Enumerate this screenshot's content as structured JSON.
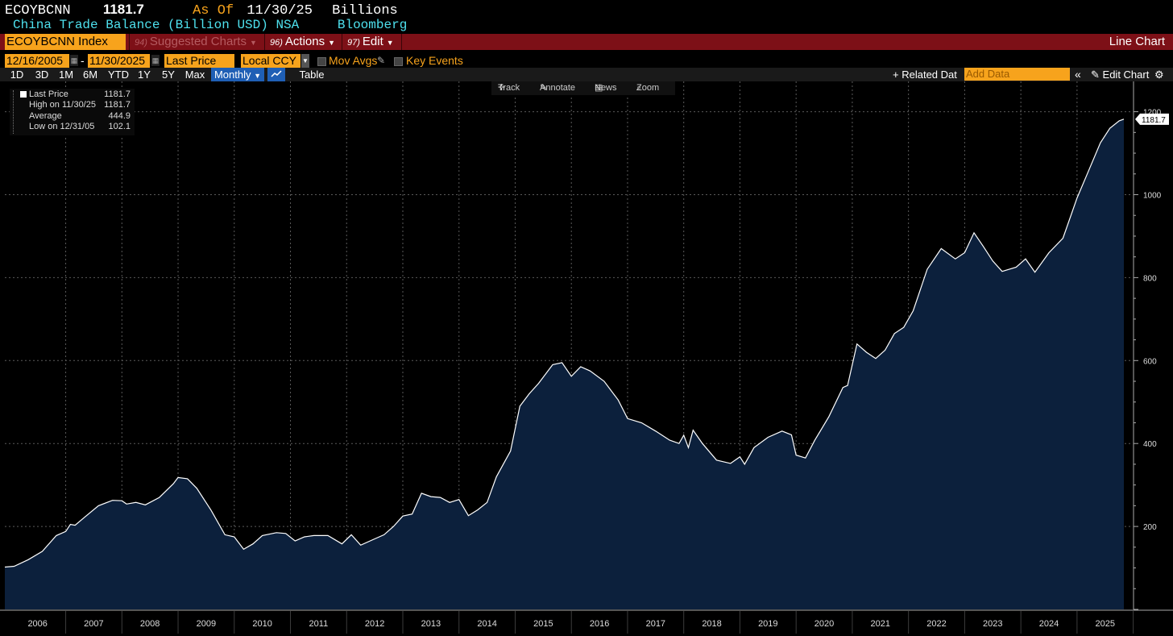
{
  "header": {
    "ticker": "ECOYBCNN",
    "last_value": "1181.7",
    "as_of_label": "As Of",
    "as_of_date": "11/30/25",
    "units": "Billions",
    "description": "China Trade Balance (Billion USD) NSA",
    "source": "Bloomberg"
  },
  "menu": {
    "index_label": "ECOYBCNN Index",
    "suggested": {
      "num": "94)",
      "label": "Suggested Charts"
    },
    "actions": {
      "num": "96)",
      "label": "Actions"
    },
    "edit": {
      "num": "97)",
      "label": "Edit"
    },
    "chart_title": "Line Chart"
  },
  "controls": {
    "start_date": "12/16/2005",
    "end_date": "11/30/2025",
    "dash": "-",
    "field": "Last Price",
    "currency": "Local CCY",
    "mov_avgs": "Mov Avgs",
    "key_events": "Key Events"
  },
  "periods": [
    "1D",
    "3D",
    "1M",
    "6M",
    "YTD",
    "1Y",
    "5Y",
    "Max"
  ],
  "frequency": "Monthly",
  "table_label": "Table",
  "related_data": "Related Dat",
  "add_data_placeholder": "Add Data",
  "edit_chart": "Edit Chart",
  "tools": {
    "track": "Track",
    "annotate": "Annotate",
    "news": "News",
    "zoom": "Zoom"
  },
  "legend": {
    "last_price_label": "Last Price",
    "last_price_value": "1181.7",
    "high_label": "High on 11/30/25",
    "high_value": "1181.7",
    "average_label": "Average",
    "average_value": "444.9",
    "low_label": "Low on 12/31/05",
    "low_value": "102.1"
  },
  "colors": {
    "accent": "#f7a31c",
    "menu_bar": "#7d1017",
    "fill": "#0c203c",
    "line": "#ffffff",
    "cyan": "#4ee1ee"
  },
  "chart_data": {
    "type": "area",
    "series": [
      {
        "name": "Last Price",
        "points": [
          [
            "2005-12",
            102
          ],
          [
            "2006-02",
            104
          ],
          [
            "2006-05",
            120
          ],
          [
            "2006-08",
            140
          ],
          [
            "2006-11",
            178
          ],
          [
            "2007-01",
            188
          ],
          [
            "2007-02",
            205
          ],
          [
            "2007-03",
            203
          ],
          [
            "2007-05",
            222
          ],
          [
            "2007-08",
            250
          ],
          [
            "2007-11",
            263
          ],
          [
            "2008-01",
            262
          ],
          [
            "2008-02",
            254
          ],
          [
            "2008-04",
            258
          ],
          [
            "2008-06",
            252
          ],
          [
            "2008-09",
            270
          ],
          [
            "2008-12",
            303
          ],
          [
            "2009-01",
            318
          ],
          [
            "2009-03",
            315
          ],
          [
            "2009-05",
            292
          ],
          [
            "2009-08",
            240
          ],
          [
            "2009-11",
            180
          ],
          [
            "2010-01",
            175
          ],
          [
            "2010-03",
            145
          ],
          [
            "2010-05",
            158
          ],
          [
            "2010-07",
            178
          ],
          [
            "2010-10",
            185
          ],
          [
            "2010-12",
            183
          ],
          [
            "2011-02",
            165
          ],
          [
            "2011-04",
            175
          ],
          [
            "2011-06",
            178
          ],
          [
            "2011-09",
            178
          ],
          [
            "2011-12",
            158
          ],
          [
            "2012-02",
            180
          ],
          [
            "2012-04",
            155
          ],
          [
            "2012-07",
            170
          ],
          [
            "2012-09",
            180
          ],
          [
            "2012-11",
            200
          ],
          [
            "2013-01",
            225
          ],
          [
            "2013-03",
            230
          ],
          [
            "2013-05",
            280
          ],
          [
            "2013-07",
            272
          ],
          [
            "2013-09",
            270
          ],
          [
            "2013-11",
            258
          ],
          [
            "2014-01",
            265
          ],
          [
            "2014-03",
            226
          ],
          [
            "2014-05",
            240
          ],
          [
            "2014-07",
            258
          ],
          [
            "2014-09",
            320
          ],
          [
            "2014-12",
            382
          ],
          [
            "2015-02",
            490
          ],
          [
            "2015-04",
            520
          ],
          [
            "2015-06",
            545
          ],
          [
            "2015-09",
            590
          ],
          [
            "2015-11",
            595
          ],
          [
            "2016-01",
            562
          ],
          [
            "2016-03",
            585
          ],
          [
            "2016-05",
            575
          ],
          [
            "2016-08",
            550
          ],
          [
            "2016-11",
            505
          ],
          [
            "2017-01",
            460
          ],
          [
            "2017-04",
            450
          ],
          [
            "2017-07",
            430
          ],
          [
            "2017-10",
            408
          ],
          [
            "2017-12",
            400
          ],
          [
            "2018-01",
            420
          ],
          [
            "2018-02",
            390
          ],
          [
            "2018-03",
            432
          ],
          [
            "2018-05",
            400
          ],
          [
            "2018-08",
            360
          ],
          [
            "2018-11",
            352
          ],
          [
            "2019-01",
            368
          ],
          [
            "2019-02",
            350
          ],
          [
            "2019-04",
            390
          ],
          [
            "2019-07",
            415
          ],
          [
            "2019-10",
            430
          ],
          [
            "2019-12",
            421
          ],
          [
            "2020-01",
            372
          ],
          [
            "2020-03",
            365
          ],
          [
            "2020-05",
            408
          ],
          [
            "2020-08",
            465
          ],
          [
            "2020-11",
            535
          ],
          [
            "2020-12",
            540
          ],
          [
            "2021-02",
            640
          ],
          [
            "2021-04",
            620
          ],
          [
            "2021-06",
            605
          ],
          [
            "2021-08",
            625
          ],
          [
            "2021-10",
            665
          ],
          [
            "2021-12",
            680
          ],
          [
            "2022-02",
            720
          ],
          [
            "2022-05",
            820
          ],
          [
            "2022-08",
            870
          ],
          [
            "2022-11",
            845
          ],
          [
            "2023-01",
            860
          ],
          [
            "2023-03",
            908
          ],
          [
            "2023-05",
            875
          ],
          [
            "2023-07",
            840
          ],
          [
            "2023-09",
            815
          ],
          [
            "2023-12",
            825
          ],
          [
            "2024-02",
            845
          ],
          [
            "2024-04",
            813
          ],
          [
            "2024-07",
            860
          ],
          [
            "2024-10",
            895
          ],
          [
            "2025-01",
            992
          ],
          [
            "2025-03",
            1045
          ],
          [
            "2025-06",
            1125
          ],
          [
            "2025-08",
            1160
          ],
          [
            "2025-10",
            1178
          ],
          [
            "2025-11",
            1182
          ]
        ]
      }
    ],
    "x_axis": {
      "ticks": [
        "2006",
        "2007",
        "2008",
        "2009",
        "2010",
        "2011",
        "2012",
        "2013",
        "2014",
        "2015",
        "2016",
        "2017",
        "2018",
        "2019",
        "2020",
        "2021",
        "2022",
        "2023",
        "2024",
        "2025"
      ],
      "range": [
        "2005-12",
        "2025-11"
      ]
    },
    "y_axis": {
      "ticks": [
        200,
        400,
        600,
        800,
        1000,
        1200
      ],
      "range": [
        0,
        1240
      ],
      "side": "right"
    },
    "last_value_label": "1181.7",
    "grid": true
  }
}
